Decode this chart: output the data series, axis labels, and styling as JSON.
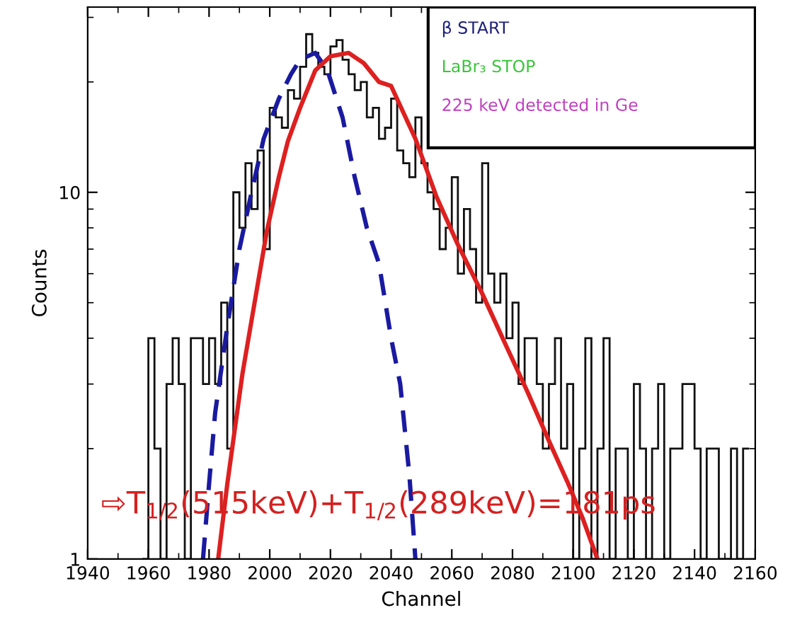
{
  "chart_data": {
    "type": "histogram",
    "xlabel": "Channel",
    "ylabel": "Counts",
    "xlim": [
      1940,
      2160
    ],
    "xticks": [
      1940,
      1960,
      1980,
      2000,
      2020,
      2040,
      2060,
      2080,
      2100,
      2120,
      2140,
      2160
    ],
    "ylim": [
      1,
      32
    ],
    "yticks": [
      1,
      10
    ],
    "log": "y",
    "grid": false,
    "series": [
      {
        "color": "#111111",
        "bins": [
          1958,
          1960,
          1962,
          1964,
          1966,
          1968,
          1970,
          1972,
          1974,
          1976,
          1978,
          1980,
          1982,
          1984,
          1986,
          1988,
          1990,
          1992,
          1994,
          1996,
          1998,
          2000,
          2002,
          2004,
          2006,
          2008,
          2010,
          2012,
          2014,
          2016,
          2018,
          2020,
          2022,
          2024,
          2026,
          2028,
          2030,
          2032,
          2034,
          2036,
          2038,
          2040,
          2042,
          2044,
          2046,
          2048,
          2050,
          2052,
          2054,
          2056,
          2058,
          2060,
          2062,
          2064,
          2066,
          2068,
          2070,
          2072,
          2074,
          2076,
          2078,
          2080,
          2082,
          2084,
          2086,
          2088,
          2090,
          2092,
          2094,
          2096,
          2098,
          2100,
          2102,
          2104,
          2106,
          2108,
          2110,
          2112,
          2114,
          2116,
          2118,
          2120,
          2122,
          2124,
          2126,
          2128,
          2130,
          2132,
          2134,
          2136,
          2138,
          2140,
          2142,
          2144,
          2146,
          2148,
          2150,
          2152,
          2154,
          2156,
          2158
        ],
        "values": [
          1,
          4,
          2,
          1,
          3,
          4,
          3,
          1,
          4,
          4,
          3,
          4,
          3,
          5,
          2,
          10,
          8,
          12,
          9,
          13,
          7,
          17,
          16,
          15,
          19,
          18,
          22,
          27,
          24,
          22,
          21,
          25,
          26,
          23,
          21,
          19,
          20,
          16,
          17,
          14,
          15,
          18,
          13,
          12,
          11,
          16,
          12,
          10,
          9,
          7,
          8,
          11,
          6,
          9,
          7,
          5,
          12,
          6,
          5,
          6,
          4,
          5,
          3,
          4,
          4,
          3,
          2,
          3,
          4,
          2,
          3,
          1,
          2,
          4,
          1,
          2,
          4,
          1,
          2,
          2,
          1,
          3,
          2,
          1,
          2,
          3,
          1,
          2,
          2,
          3,
          3,
          2,
          1,
          2,
          2,
          1,
          1,
          2,
          1,
          2
        ]
      },
      {
        "type": "line",
        "color": "#1a1aa0",
        "line_style": "dashed",
        "x": [
          1978,
          1980,
          1982,
          1986,
          1990,
          1994,
          1998,
          2003,
          2007,
          2010,
          2015,
          2019,
          2024,
          2028,
          2032,
          2036,
          2040,
          2043,
          2046,
          2048
        ],
        "values": [
          1,
          1.6,
          2.5,
          4.3,
          7,
          10,
          14,
          18,
          21,
          23,
          24,
          21.5,
          16,
          11,
          8,
          6.4,
          4,
          3,
          1.7,
          1
        ]
      },
      {
        "type": "line",
        "color": "#dd2020",
        "line_style": "solid",
        "x": [
          1983,
          1986,
          1991,
          1995,
          1999,
          2003,
          2006,
          2010,
          2015,
          2020,
          2026,
          2031,
          2036,
          2040,
          2048,
          2055,
          2062,
          2070,
          2078,
          2085,
          2092,
          2098,
          2103,
          2108
        ],
        "values": [
          1,
          1.6,
          3.2,
          5,
          7.8,
          11,
          13.8,
          17,
          21.5,
          23.5,
          24,
          22.5,
          20,
          19.5,
          14,
          9.7,
          7.2,
          5.3,
          3.8,
          2.85,
          2.1,
          1.63,
          1.3,
          1
        ]
      }
    ],
    "annotations": [
      "β START",
      "LaBr₃ STOP",
      "225 keV detected in Ge",
      "⇨T$_{1/2}$(515keV)+T$_{1/2}$(289keV)=181ps"
    ]
  }
}
